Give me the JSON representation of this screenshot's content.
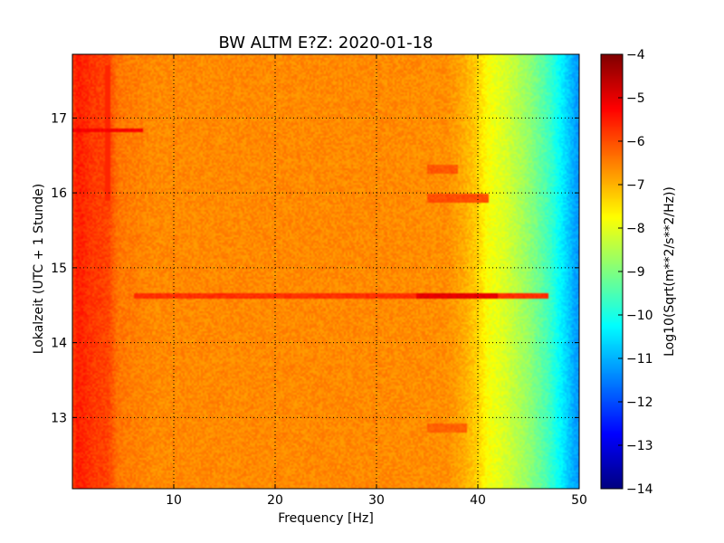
{
  "chart_data": {
    "type": "heatmap",
    "title": "BW ALTM E?Z: 2020-01-18",
    "xlabel": "Frequency [Hz]",
    "ylabel": "Lokalzeit (UTC + 1 Stunde)",
    "colorbar_label": "Log10(Sqrt(m**2/s**2/Hz))",
    "xlim": [
      0,
      50
    ],
    "ylim": [
      17.85,
      12.05
    ],
    "y_inverted": true,
    "x_ticks": [
      10,
      20,
      30,
      40,
      50
    ],
    "x_tick_labels": [
      "10",
      "20",
      "30",
      "40",
      "50"
    ],
    "y_ticks": [
      13,
      14,
      15,
      16,
      17
    ],
    "y_tick_labels": [
      "13",
      "14",
      "15",
      "16",
      "17"
    ],
    "colorbar_range": [
      -14,
      -4
    ],
    "colorbar_ticks": [
      -4,
      -5,
      -6,
      -7,
      -8,
      -9,
      -10,
      -11,
      -12,
      -13,
      -14
    ],
    "colorbar_tick_labels": [
      "−4",
      "−5",
      "−6",
      "−7",
      "−8",
      "−9",
      "−10",
      "−11",
      "−12",
      "−13",
      "−14"
    ],
    "colormap": "jet",
    "grid": true,
    "grid_style": "dotted",
    "spectrum_profile": {
      "frequency_hz": [
        0,
        0.5,
        2,
        3.5,
        4.5,
        8,
        20,
        30,
        37,
        38.5,
        40,
        41,
        43,
        45,
        47,
        48.5,
        49.5,
        50
      ],
      "log10_amplitude": [
        -5.9,
        -5.5,
        -5.8,
        -5.9,
        -6.4,
        -6.6,
        -6.6,
        -6.6,
        -6.65,
        -6.9,
        -7.3,
        -7.8,
        -8.2,
        -8.8,
        -9.6,
        -10.5,
        -11.1,
        -11.3
      ]
    },
    "notable_features": [
      {
        "type": "horizontal_band",
        "time": 14.62,
        "freq_range": [
          6,
          47
        ],
        "log10_amplitude": -5.7,
        "peak_freq_range": [
          34,
          42
        ],
        "peak_log10_amplitude": -5.0
      },
      {
        "type": "horizontal_band",
        "time": 16.83,
        "freq_range": [
          0,
          7
        ],
        "log10_amplitude": -5.2
      },
      {
        "type": "vertical_band",
        "freq": 3.5,
        "time_range": [
          15.9,
          17.7
        ],
        "log10_amplitude": -5.6
      },
      {
        "type": "patch",
        "time": 15.93,
        "freq_range": [
          35,
          41
        ],
        "log10_amplitude": -6.0
      },
      {
        "type": "patch",
        "time": 16.32,
        "freq_range": [
          35,
          38
        ],
        "log10_amplitude": -6.1
      },
      {
        "type": "patch",
        "time": 12.85,
        "freq_range": [
          35,
          39
        ],
        "log10_amplitude": -6.2
      }
    ]
  }
}
